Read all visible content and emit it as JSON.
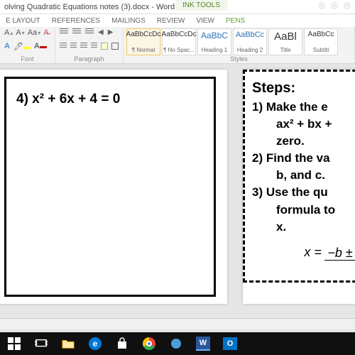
{
  "title": "olving Quadratic Equations notes (3).docx - Word",
  "tool_context": "INK TOOLS",
  "tabs": {
    "layout": "E LAYOUT",
    "references": "REFERENCES",
    "mailings": "MAILINGS",
    "review": "REVIEW",
    "view": "VIEW",
    "pens": "PENS"
  },
  "ribbon": {
    "font_group": "Font",
    "paragraph_group": "Paragraph",
    "styles_group": "Styles"
  },
  "styles": [
    {
      "preview": "AaBbCcDc",
      "name": "¶ Normal",
      "cls": "norm",
      "selected": true
    },
    {
      "preview": "AaBbCcDc",
      "name": "¶ No Spac...",
      "cls": "norm"
    },
    {
      "preview": "AaBbC",
      "name": "Heading 1",
      "cls": "h1"
    },
    {
      "preview": "AaBbCc",
      "name": "Heading 2",
      "cls": "h2"
    },
    {
      "preview": "AaBl",
      "name": "Title",
      "cls": "title"
    },
    {
      "preview": "AaBbCc",
      "name": "Subtitl",
      "cls": "sub"
    }
  ],
  "doc": {
    "problem": "4) x² + 6x + 4 = 0",
    "steps_title": "Steps:",
    "step1a": "1) Make the e",
    "step1b": "ax² + bx +",
    "step1c": "zero.",
    "step2a": "2) Find the va",
    "step2b": "b, and c.",
    "step3a": "3) Use the qu",
    "step3b": "formula to",
    "step3c": "x.",
    "formula_lhs": "x =",
    "formula_num": "−b ± √"
  },
  "colors": {
    "word_blue": "#2b579a",
    "ribbon_bg": "#f3f3f3",
    "doc_bg": "#e6e6e6",
    "taskbar": "#101010"
  }
}
